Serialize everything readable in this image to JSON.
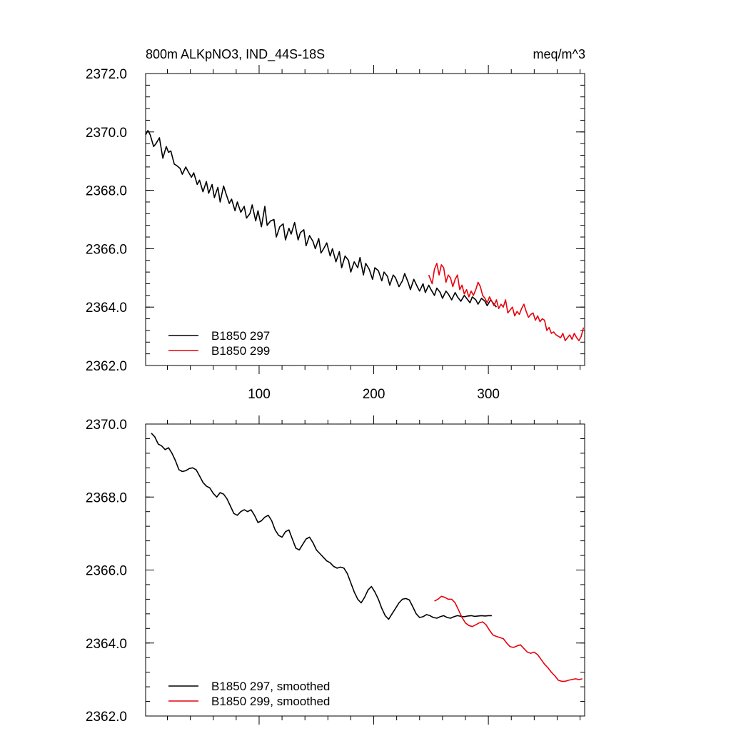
{
  "chart_data": [
    {
      "type": "line",
      "title_left": "800m ALKpNO3, IND_44S-18S",
      "title_right": "meq/m^3",
      "xlim": [
        1,
        384
      ],
      "ylim": [
        2362,
        2372
      ],
      "x_tick_labels": [
        "100",
        "200",
        "300"
      ],
      "x_ticks": [
        100,
        200,
        300
      ],
      "y_tick_labels": [
        "2362.0",
        "2364.0",
        "2366.0",
        "2368.0",
        "2370.0",
        "2372.0"
      ],
      "y_ticks": [
        2362,
        2364,
        2366,
        2368,
        2370,
        2372
      ],
      "grid": false,
      "legend_position": "bottom-left",
      "series": [
        {
          "name": "B1850 297",
          "color": "#000000",
          "x": [
            1,
            3,
            5,
            8,
            10,
            13,
            16,
            19,
            21,
            23,
            26,
            28,
            31,
            33,
            36,
            38,
            41,
            43,
            46,
            48,
            51,
            54,
            56,
            59,
            61,
            64,
            66,
            69,
            71,
            74,
            76,
            79,
            81,
            84,
            87,
            89,
            92,
            94,
            97,
            99,
            102,
            105,
            107,
            110,
            113,
            115,
            118,
            121,
            123,
            126,
            128,
            131,
            134,
            136,
            139,
            141,
            144,
            147,
            149,
            152,
            154,
            157,
            159,
            162,
            164,
            167,
            170,
            172,
            175,
            178,
            180,
            183,
            186,
            188,
            191,
            193,
            196,
            199,
            201,
            204,
            207,
            209,
            212,
            214,
            217,
            219,
            222,
            225,
            227,
            230,
            232,
            235,
            238,
            240,
            243,
            245,
            248,
            250,
            253,
            255,
            258,
            260,
            263,
            265,
            268,
            271,
            273,
            276,
            279,
            281,
            284,
            286,
            289,
            291,
            294,
            297,
            299,
            302,
            305,
            307
          ],
          "y": [
            2369.9,
            2370.05,
            2369.9,
            2369.5,
            2369.6,
            2369.8,
            2369.1,
            2369.5,
            2369.3,
            2369.35,
            2368.9,
            2368.85,
            2368.75,
            2368.55,
            2368.8,
            2368.65,
            2368.45,
            2368.6,
            2368.2,
            2368.35,
            2367.95,
            2368.3,
            2367.9,
            2368.2,
            2367.75,
            2368.1,
            2367.6,
            2368.15,
            2367.9,
            2367.55,
            2367.7,
            2367.3,
            2367.6,
            2367.25,
            2367.45,
            2367.05,
            2367.2,
            2367.5,
            2366.95,
            2367.3,
            2366.75,
            2367.45,
            2366.8,
            2366.95,
            2367.0,
            2366.4,
            2366.75,
            2366.85,
            2366.3,
            2366.7,
            2366.5,
            2366.9,
            2366.3,
            2366.55,
            2366.65,
            2366.1,
            2366.45,
            2366.25,
            2366.0,
            2366.35,
            2365.85,
            2366.05,
            2366.2,
            2365.75,
            2366.0,
            2365.55,
            2365.9,
            2365.35,
            2365.75,
            2365.6,
            2365.2,
            2365.55,
            2365.35,
            2365.7,
            2365.1,
            2365.5,
            2365.3,
            2364.95,
            2365.35,
            2365.25,
            2364.9,
            2365.2,
            2365.05,
            2364.75,
            2365.1,
            2365.0,
            2364.7,
            2364.9,
            2365.15,
            2364.85,
            2364.6,
            2364.95,
            2364.7,
            2364.55,
            2364.8,
            2364.5,
            2364.75,
            2364.6,
            2364.4,
            2364.65,
            2364.5,
            2364.3,
            2364.55,
            2364.45,
            2364.25,
            2364.5,
            2364.35,
            2364.2,
            2364.4,
            2364.3,
            2364.15,
            2364.35,
            2364.25,
            2364.1,
            2364.3,
            2364.2,
            2364.05,
            2364.25,
            2364.1,
            2364.0
          ]
        },
        {
          "name": "B1850 299",
          "color": "#e8000b",
          "x": [
            248,
            251,
            253,
            255,
            257,
            259,
            261,
            263,
            265,
            267,
            269,
            271,
            273,
            275,
            277,
            279,
            281,
            283,
            285,
            287,
            289,
            291,
            293,
            295,
            297,
            299,
            301,
            303,
            305,
            307,
            309,
            311,
            313,
            315,
            317,
            319,
            321,
            323,
            325,
            327,
            329,
            331,
            333,
            335,
            337,
            339,
            341,
            343,
            345,
            347,
            349,
            351,
            353,
            355,
            357,
            359,
            361,
            363,
            365,
            367,
            369,
            371,
            373,
            375,
            377,
            379,
            381,
            383
          ],
          "y": [
            2365.1,
            2364.8,
            2365.3,
            2365.5,
            2365.1,
            2365.45,
            2365.35,
            2364.85,
            2365.1,
            2365.0,
            2364.7,
            2364.95,
            2365.1,
            2364.6,
            2364.75,
            2364.45,
            2364.6,
            2364.35,
            2364.55,
            2364.4,
            2364.6,
            2364.85,
            2364.7,
            2364.4,
            2364.3,
            2364.15,
            2364.35,
            2364.2,
            2364.05,
            2364.25,
            2363.95,
            2364.1,
            2364.0,
            2364.25,
            2363.8,
            2363.9,
            2364.0,
            2363.7,
            2363.85,
            2363.75,
            2363.95,
            2364.1,
            2363.85,
            2363.65,
            2363.75,
            2363.8,
            2363.55,
            2363.7,
            2363.5,
            2363.6,
            2363.55,
            2363.2,
            2363.3,
            2363.1,
            2363.15,
            2363.05,
            2363.0,
            2362.95,
            2363.1,
            2362.85,
            2362.95,
            2363.05,
            2362.9,
            2363.1,
            2362.95,
            2362.85,
            2363.0,
            2363.3
          ]
        }
      ]
    },
    {
      "type": "line",
      "xlim": [
        1,
        384
      ],
      "ylim": [
        2362,
        2370
      ],
      "x_ticks": [
        100,
        200,
        300
      ],
      "y_tick_labels": [
        "2362.0",
        "2364.0",
        "2366.0",
        "2368.0",
        "2370.0"
      ],
      "y_ticks": [
        2362,
        2364,
        2366,
        2368,
        2370
      ],
      "grid": false,
      "legend_position": "bottom-left",
      "series": [
        {
          "name": "B1850 297, smoothed",
          "color": "#000000",
          "x": [
            6,
            9,
            12,
            15,
            18,
            21,
            24,
            27,
            30,
            33,
            36,
            39,
            42,
            45,
            48,
            51,
            54,
            57,
            60,
            63,
            66,
            69,
            72,
            75,
            78,
            81,
            84,
            87,
            90,
            93,
            96,
            99,
            102,
            105,
            108,
            111,
            114,
            117,
            120,
            123,
            126,
            129,
            132,
            135,
            138,
            141,
            144,
            147,
            150,
            153,
            156,
            159,
            162,
            165,
            168,
            171,
            174,
            177,
            180,
            183,
            186,
            189,
            192,
            195,
            198,
            201,
            204,
            207,
            210,
            213,
            216,
            219,
            222,
            225,
            228,
            231,
            234,
            237,
            240,
            243,
            246,
            249,
            252,
            255,
            258,
            261,
            264,
            267,
            270,
            273,
            276,
            279,
            282,
            285,
            288,
            291,
            294,
            297,
            300,
            303
          ],
          "y": [
            2369.75,
            2369.65,
            2369.45,
            2369.4,
            2369.3,
            2369.35,
            2369.2,
            2369.0,
            2368.75,
            2368.7,
            2368.72,
            2368.78,
            2368.8,
            2368.75,
            2368.58,
            2368.4,
            2368.3,
            2368.25,
            2368.1,
            2368.0,
            2368.12,
            2368.08,
            2367.95,
            2367.75,
            2367.55,
            2367.5,
            2367.6,
            2367.65,
            2367.6,
            2367.65,
            2367.5,
            2367.3,
            2367.35,
            2367.45,
            2367.5,
            2367.35,
            2367.1,
            2366.95,
            2366.9,
            2367.05,
            2367.1,
            2366.85,
            2366.6,
            2366.55,
            2366.7,
            2366.85,
            2366.9,
            2366.75,
            2366.55,
            2366.45,
            2366.35,
            2366.25,
            2366.2,
            2366.1,
            2366.05,
            2366.08,
            2366.05,
            2365.9,
            2365.65,
            2365.4,
            2365.2,
            2365.1,
            2365.25,
            2365.45,
            2365.55,
            2365.4,
            2365.2,
            2364.95,
            2364.75,
            2364.65,
            2364.8,
            2364.95,
            2365.1,
            2365.2,
            2365.22,
            2365.18,
            2365.0,
            2364.8,
            2364.7,
            2364.72,
            2364.78,
            2364.75,
            2364.7,
            2364.68,
            2364.72,
            2364.75,
            2364.7,
            2364.68,
            2364.72,
            2364.75,
            2364.73,
            2364.72,
            2364.74,
            2364.75,
            2364.73,
            2364.74,
            2364.75,
            2364.74,
            2364.75,
            2364.75
          ]
        },
        {
          "name": "B1850 299, smoothed",
          "color": "#e8000b",
          "x": [
            253,
            256,
            259,
            262,
            265,
            268,
            271,
            274,
            277,
            280,
            283,
            286,
            289,
            292,
            295,
            298,
            301,
            304,
            307,
            310,
            313,
            316,
            319,
            322,
            325,
            328,
            331,
            334,
            337,
            340,
            343,
            346,
            349,
            352,
            355,
            358,
            361,
            364,
            367,
            370,
            373,
            376,
            379,
            382
          ],
          "y": [
            2365.15,
            2365.2,
            2365.28,
            2365.25,
            2365.2,
            2365.2,
            2365.1,
            2364.9,
            2364.7,
            2364.55,
            2364.48,
            2364.45,
            2364.5,
            2364.55,
            2364.58,
            2364.5,
            2364.35,
            2364.22,
            2364.18,
            2364.15,
            2364.12,
            2364.0,
            2363.9,
            2363.88,
            2363.92,
            2363.95,
            2363.85,
            2363.75,
            2363.72,
            2363.75,
            2363.68,
            2363.55,
            2363.42,
            2363.32,
            2363.2,
            2363.1,
            2362.98,
            2362.95,
            2362.95,
            2362.98,
            2363.0,
            2363.02,
            2363.0,
            2363.02
          ]
        }
      ]
    }
  ]
}
